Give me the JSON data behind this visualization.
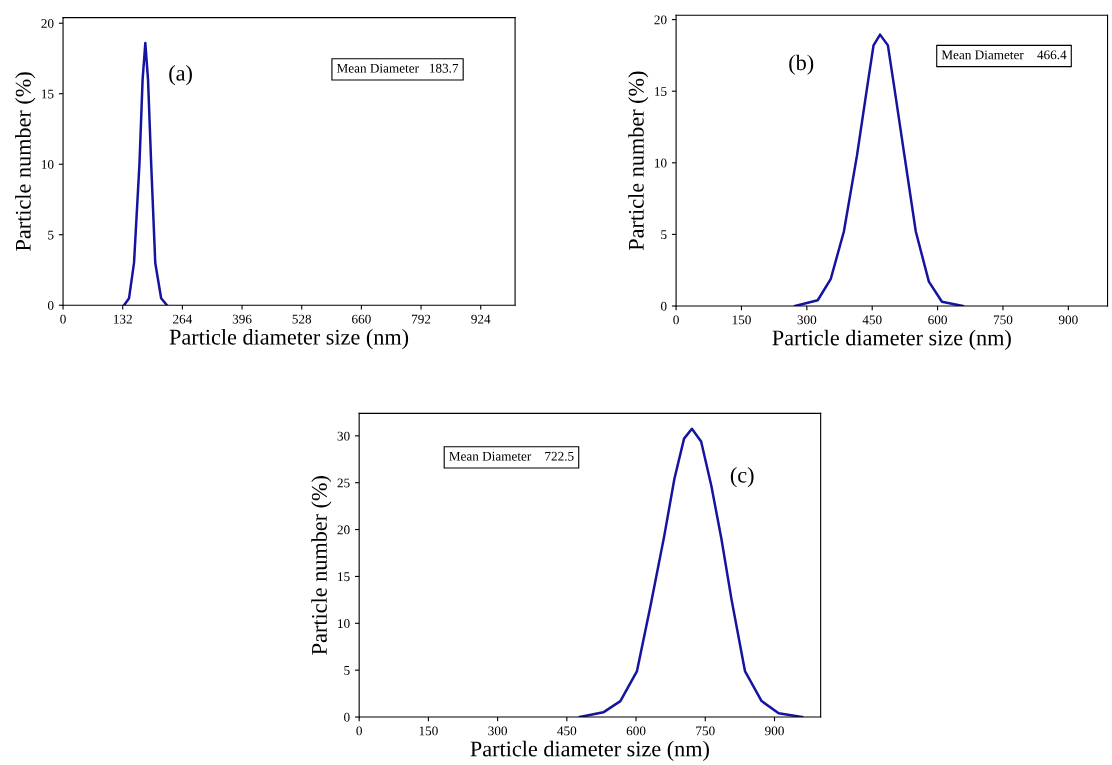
{
  "chart_data": [
    {
      "type": "line",
      "xlabel": "Particle diameter size (nm)",
      "ylabel": "Particle number (%)",
      "annotations": [
        "(a)",
        "Mean Diameter   183.7"
      ],
      "xlim": [
        0,
        1000
      ],
      "ylim": [
        0,
        20.4
      ],
      "xticks": [
        0,
        132,
        264,
        396,
        528,
        660,
        792,
        924
      ],
      "yticks": [
        0,
        5,
        10,
        15,
        20
      ],
      "grid": false,
      "legend": false,
      "marker": "none",
      "series": [
        {
          "color": "#1414a0",
          "x": [
            135,
            146,
            157,
            169,
            176,
            182,
            188,
            195,
            204,
            217,
            230
          ],
          "values": [
            0,
            0.5,
            3,
            10,
            16,
            18.6,
            16,
            10,
            3,
            0.5,
            0
          ]
        }
      ]
    },
    {
      "type": "line",
      "xlabel": "Particle diameter size (nm)",
      "ylabel": "Particle number (%)",
      "annotations": [
        "(b)",
        "Mean Diameter    466.4"
      ],
      "xlim": [
        0,
        990
      ],
      "ylim": [
        0,
        20.3
      ],
      "xticks": [
        0,
        150,
        300,
        450,
        600,
        750,
        900
      ],
      "yticks": [
        0,
        5,
        10,
        15,
        20
      ],
      "grid": false,
      "legend": false,
      "marker": "none",
      "series": [
        {
          "color": "#1414a0",
          "x": [
            273,
            325,
            355,
            385,
            415,
            438,
            453,
            468,
            486,
            501,
            524,
            550,
            580,
            610,
            658
          ],
          "values": [
            0,
            0.4,
            1.9,
            5.2,
            10.5,
            15.2,
            18.2,
            18.95,
            18.2,
            15.2,
            10.5,
            5.2,
            1.7,
            0.3,
            0
          ]
        }
      ]
    },
    {
      "type": "line",
      "xlabel": "Particle diameter size (nm)",
      "ylabel": "Particle number (%)",
      "annotations": [
        "(c)",
        "Mean Diameter    722.5"
      ],
      "xlim": [
        0,
        1000
      ],
      "ylim": [
        0,
        32.4
      ],
      "xticks": [
        0,
        150,
        300,
        450,
        600,
        750,
        900
      ],
      "yticks": [
        0,
        5,
        10,
        15,
        20,
        25,
        30
      ],
      "grid": false,
      "legend": false,
      "marker": "none",
      "series": [
        {
          "color": "#1414a0",
          "x": [
            478,
            529,
            566,
            602,
            631,
            661,
            683,
            704,
            721,
            741,
            763,
            785,
            807,
            836,
            872,
            909,
            960
          ],
          "values": [
            0,
            0.5,
            1.7,
            4.9,
            11.8,
            19.3,
            25.4,
            29.7,
            30.75,
            29.4,
            24.7,
            19,
            12.5,
            4.9,
            1.7,
            0.4,
            0
          ]
        }
      ]
    }
  ]
}
